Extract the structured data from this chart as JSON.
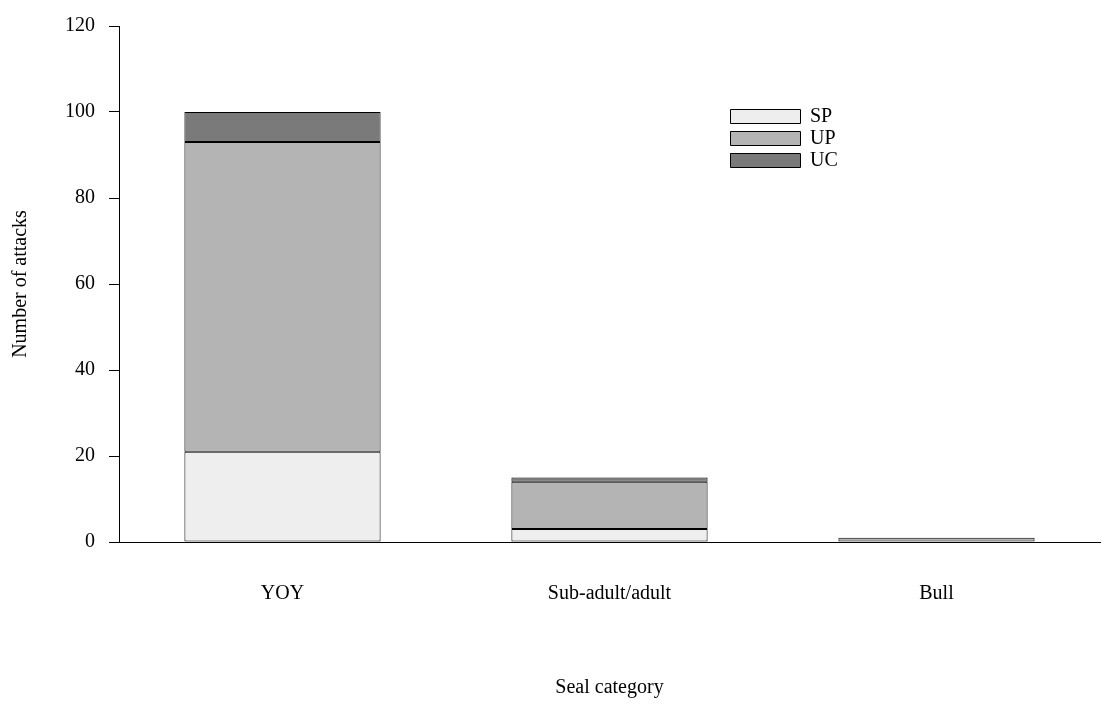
{
  "chart_data": {
    "type": "bar",
    "stacked": true,
    "xlabel": "Seal category",
    "ylabel": "Number of attacks",
    "categories": [
      "YOY",
      "Sub-adult/adult",
      "Bull"
    ],
    "series": [
      {
        "name": "SP",
        "color": "#eeeeee",
        "values": [
          21,
          3,
          0
        ]
      },
      {
        "name": "UP",
        "color": "#b4b4b4",
        "values": [
          72,
          11,
          1
        ]
      },
      {
        "name": "UC",
        "color": "#7a7a7a",
        "values": [
          7,
          1,
          0
        ]
      }
    ],
    "ylim": [
      0,
      120
    ],
    "yticks": [
      0,
      20,
      40,
      60,
      80,
      100,
      120
    ],
    "legend": "top right"
  }
}
